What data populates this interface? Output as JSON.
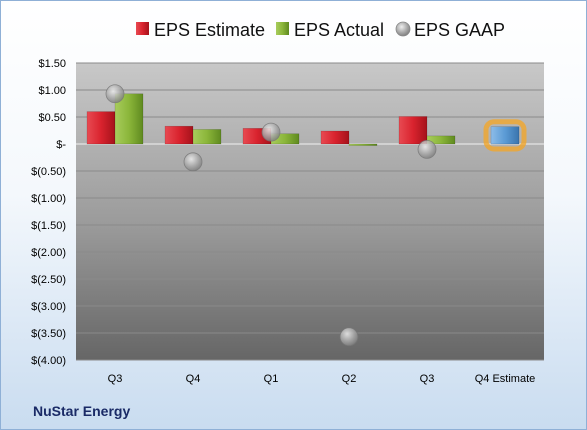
{
  "company": "NuStar Energy",
  "chart_data": {
    "type": "bar",
    "categories": [
      "Q3",
      "Q4",
      "Q1",
      "Q2",
      "Q3",
      "Q4 Estimate"
    ],
    "series": [
      {
        "name": "EPS Estimate",
        "type": "bar",
        "color": "#d9232e",
        "values": [
          0.6,
          0.33,
          0.29,
          0.24,
          0.51,
          null
        ]
      },
      {
        "name": "EPS Actual",
        "type": "bar",
        "color": "#8bb63a",
        "values": [
          0.93,
          0.27,
          0.19,
          -0.03,
          0.15,
          null
        ]
      },
      {
        "name": "EPS GAAP",
        "type": "scatter",
        "color": "#a6a6a6",
        "values": [
          0.93,
          -0.33,
          0.22,
          -3.57,
          -0.1,
          null
        ]
      }
    ],
    "forecast": {
      "category": "Q4 Estimate",
      "value": 0.32,
      "color": "#5b9bd5",
      "highlight": "#f5a623"
    },
    "y_tick_labels": [
      "$1.50",
      "$1.00",
      "$0.50",
      "$-",
      "$(0.50)",
      "$(1.00)",
      "$(1.50)",
      "$(2.00)",
      "$(2.50)",
      "$(3.00)",
      "$(3.50)",
      "$(4.00)"
    ],
    "ylim": [
      -4.0,
      1.5
    ],
    "grid": true,
    "legend": "top"
  }
}
